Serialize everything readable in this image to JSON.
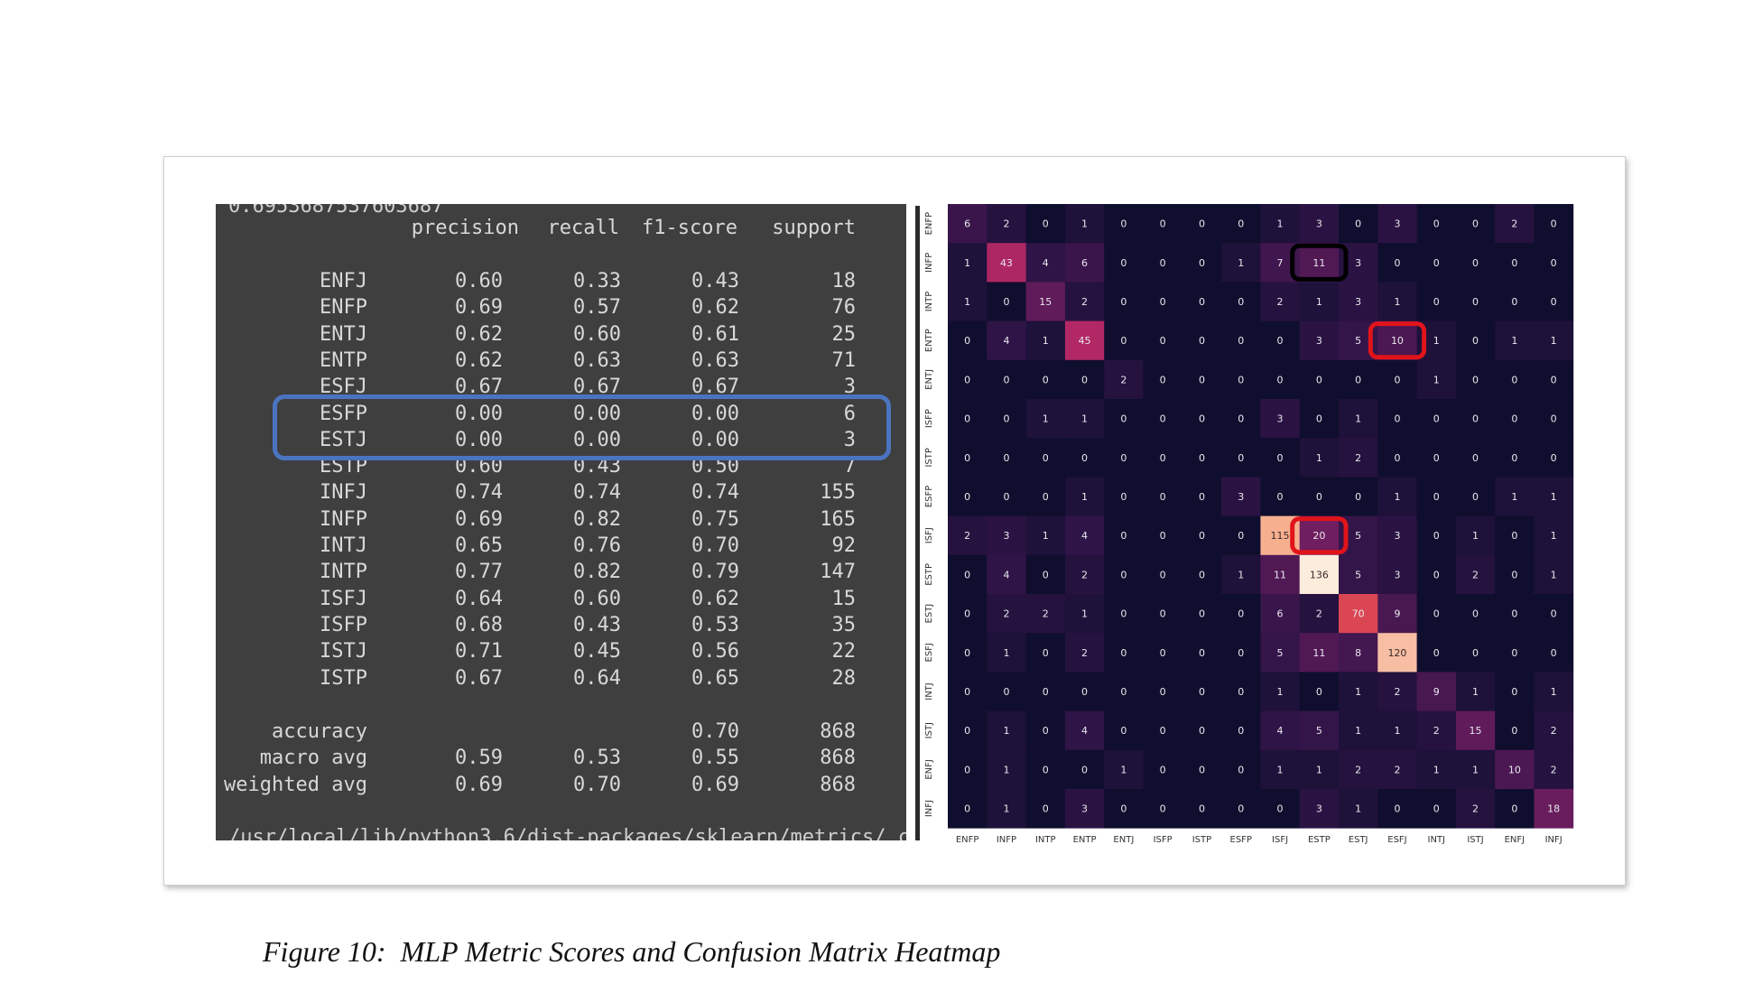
{
  "report": {
    "top_partial": "0.6953687537603687",
    "header": {
      "precision": "precision",
      "recall": "recall",
      "f1": "f1-score",
      "support": "support"
    },
    "rows": [
      {
        "label": "ENFJ",
        "precision": "0.60",
        "recall": "0.33",
        "f1": "0.43",
        "support": "18"
      },
      {
        "label": "ENFP",
        "precision": "0.69",
        "recall": "0.57",
        "f1": "0.62",
        "support": "76"
      },
      {
        "label": "ENTJ",
        "precision": "0.62",
        "recall": "0.60",
        "f1": "0.61",
        "support": "25"
      },
      {
        "label": "ENTP",
        "precision": "0.62",
        "recall": "0.63",
        "f1": "0.63",
        "support": "71"
      },
      {
        "label": "ESFJ",
        "precision": "0.67",
        "recall": "0.67",
        "f1": "0.67",
        "support": "3"
      },
      {
        "label": "ESFP",
        "precision": "0.00",
        "recall": "0.00",
        "f1": "0.00",
        "support": "6"
      },
      {
        "label": "ESTJ",
        "precision": "0.00",
        "recall": "0.00",
        "f1": "0.00",
        "support": "3"
      },
      {
        "label": "ESTP",
        "precision": "0.60",
        "recall": "0.43",
        "f1": "0.50",
        "support": "7"
      },
      {
        "label": "INFJ",
        "precision": "0.74",
        "recall": "0.74",
        "f1": "0.74",
        "support": "155"
      },
      {
        "label": "INFP",
        "precision": "0.69",
        "recall": "0.82",
        "f1": "0.75",
        "support": "165"
      },
      {
        "label": "INTJ",
        "precision": "0.65",
        "recall": "0.76",
        "f1": "0.70",
        "support": "92"
      },
      {
        "label": "INTP",
        "precision": "0.77",
        "recall": "0.82",
        "f1": "0.79",
        "support": "147"
      },
      {
        "label": "ISFJ",
        "precision": "0.64",
        "recall": "0.60",
        "f1": "0.62",
        "support": "15"
      },
      {
        "label": "ISFP",
        "precision": "0.68",
        "recall": "0.43",
        "f1": "0.53",
        "support": "35"
      },
      {
        "label": "ISTJ",
        "precision": "0.71",
        "recall": "0.45",
        "f1": "0.56",
        "support": "22"
      },
      {
        "label": "ISTP",
        "precision": "0.67",
        "recall": "0.64",
        "f1": "0.65",
        "support": "28"
      }
    ],
    "summary": [
      {
        "label": "accuracy",
        "precision": "",
        "recall": "",
        "f1": "0.70",
        "support": "868"
      },
      {
        "label": "macro avg",
        "precision": "0.59",
        "recall": "0.53",
        "f1": "0.55",
        "support": "868"
      },
      {
        "label": "weighted avg",
        "precision": "0.69",
        "recall": "0.70",
        "f1": "0.69",
        "support": "868"
      }
    ],
    "bottom_partial": "/usr/local/lib/python3.6/dist-packages/sklearn/metrics/_c"
  },
  "chart_data": {
    "type": "heatmap",
    "x_labels": [
      "ENFP",
      "INFP",
      "INTP",
      "ENTP",
      "ENTJ",
      "ISFP",
      "ISTP",
      "ESFP",
      "ISFJ",
      "ESTP",
      "ESTJ",
      "ESFJ",
      "INTJ",
      "ISTJ",
      "ENFJ",
      "INFJ"
    ],
    "y_labels": [
      "ENFP",
      "INFP",
      "INTP",
      "ENTP",
      "ENTJ",
      "ISFP",
      "ISTP",
      "ESFP",
      "ISFJ",
      "ESTP",
      "ESTJ",
      "ESFJ",
      "INTJ",
      "ISTJ",
      "ENFJ",
      "INFJ"
    ],
    "values": [
      [
        6,
        2,
        0,
        1,
        0,
        0,
        0,
        0,
        1,
        3,
        0,
        3,
        0,
        0,
        2,
        0
      ],
      [
        1,
        43,
        4,
        6,
        0,
        0,
        0,
        1,
        7,
        11,
        3,
        0,
        0,
        0,
        0,
        0
      ],
      [
        1,
        0,
        15,
        2,
        0,
        0,
        0,
        0,
        2,
        1,
        3,
        1,
        0,
        0,
        0,
        0
      ],
      [
        0,
        4,
        1,
        45,
        0,
        0,
        0,
        0,
        0,
        3,
        5,
        10,
        1,
        0,
        1,
        1
      ],
      [
        0,
        0,
        0,
        0,
        2,
        0,
        0,
        0,
        0,
        0,
        0,
        0,
        1,
        0,
        0,
        0
      ],
      [
        0,
        0,
        1,
        1,
        0,
        0,
        0,
        0,
        3,
        0,
        1,
        0,
        0,
        0,
        0,
        0
      ],
      [
        0,
        0,
        0,
        0,
        0,
        0,
        0,
        0,
        0,
        1,
        2,
        0,
        0,
        0,
        0,
        0
      ],
      [
        0,
        0,
        0,
        1,
        0,
        0,
        0,
        3,
        0,
        0,
        0,
        1,
        0,
        0,
        1,
        1
      ],
      [
        2,
        3,
        1,
        4,
        0,
        0,
        0,
        0,
        115,
        20,
        5,
        3,
        0,
        1,
        0,
        1
      ],
      [
        0,
        4,
        0,
        2,
        0,
        0,
        0,
        1,
        11,
        136,
        5,
        3,
        0,
        2,
        0,
        1
      ],
      [
        0,
        2,
        2,
        1,
        0,
        0,
        0,
        0,
        6,
        2,
        70,
        9,
        0,
        0,
        0,
        0
      ],
      [
        0,
        1,
        0,
        2,
        0,
        0,
        0,
        0,
        5,
        11,
        8,
        120,
        0,
        0,
        0,
        0
      ],
      [
        0,
        0,
        0,
        0,
        0,
        0,
        0,
        0,
        1,
        0,
        1,
        2,
        9,
        1,
        0,
        1
      ],
      [
        0,
        1,
        0,
        4,
        0,
        0,
        0,
        0,
        4,
        5,
        1,
        1,
        2,
        15,
        0,
        2
      ],
      [
        0,
        1,
        0,
        0,
        1,
        0,
        0,
        0,
        1,
        1,
        2,
        2,
        1,
        1,
        10,
        2
      ],
      [
        0,
        1,
        0,
        3,
        0,
        0,
        0,
        0,
        0,
        3,
        1,
        0,
        0,
        2,
        0,
        18
      ]
    ],
    "highlights": [
      {
        "row": 1,
        "col": 9,
        "color": "#000000"
      },
      {
        "row": 3,
        "col": 11,
        "color": "#e0141a"
      },
      {
        "row": 8,
        "col": 9,
        "color": "#e0141a"
      }
    ],
    "highlight_row_color": "#4b74c0"
  },
  "caption": "Figure 10:  MLP Metric Scores and Confusion Matrix Heatmap"
}
